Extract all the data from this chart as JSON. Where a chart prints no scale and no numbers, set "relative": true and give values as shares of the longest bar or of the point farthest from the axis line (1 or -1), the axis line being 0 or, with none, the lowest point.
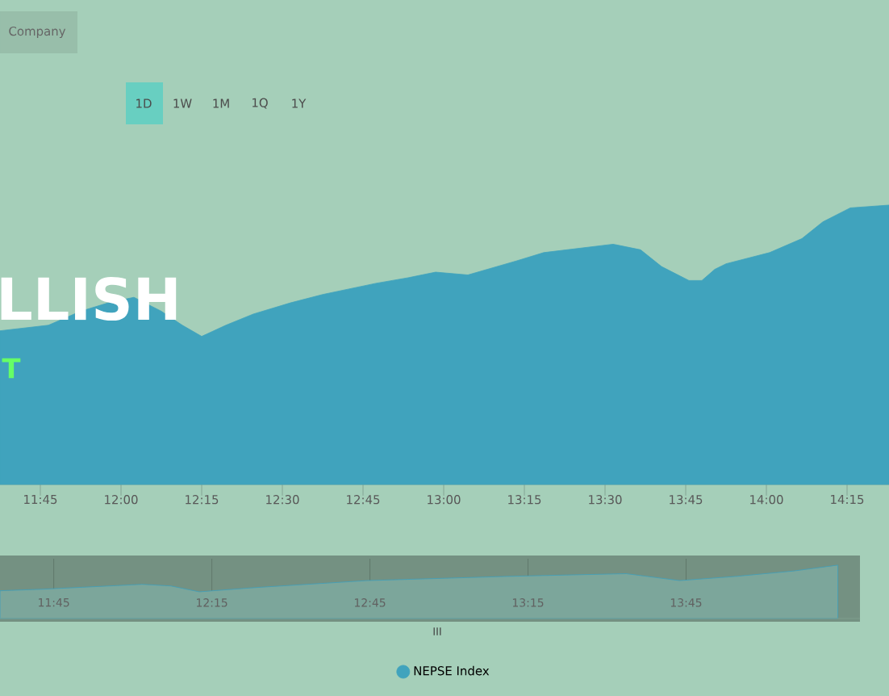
{
  "chart_data": [
    {
      "type": "area",
      "relative": true,
      "x": [
        11.625,
        11.7,
        11.775,
        11.875,
        11.96,
        12.04,
        12.125,
        12.19,
        12.25,
        12.325,
        12.41,
        12.525,
        12.625,
        12.79,
        12.89,
        12.975,
        13.075,
        13.225,
        13.31,
        13.525,
        13.61,
        13.675,
        13.76,
        13.8,
        13.84,
        13.875,
        14.01,
        14.11,
        14.175,
        14.26,
        14.38
      ],
      "series": [
        {
          "name": "NEPSE Index",
          "color": "#40a3bd",
          "values": [
            0.55,
            0.56,
            0.57,
            0.62,
            0.65,
            0.67,
            0.62,
            0.57,
            0.53,
            0.57,
            0.61,
            0.65,
            0.68,
            0.72,
            0.74,
            0.76,
            0.75,
            0.8,
            0.83,
            0.86,
            0.84,
            0.78,
            0.73,
            0.73,
            0.77,
            0.79,
            0.83,
            0.88,
            0.94,
            0.99,
            1
          ]
        }
      ],
      "xlim": [
        11.625,
        14.38
      ],
      "xticks": [
        {
          "value": 11.75,
          "label": "11:45"
        },
        {
          "value": 12,
          "label": "12:00"
        },
        {
          "value": 12.25,
          "label": "12:15"
        },
        {
          "value": 12.5,
          "label": "12:30"
        },
        {
          "value": 12.75,
          "label": "12:45"
        },
        {
          "value": 13,
          "label": "13:00"
        },
        {
          "value": 13.25,
          "label": "13:15"
        },
        {
          "value": 13.5,
          "label": "13:30"
        },
        {
          "value": 13.75,
          "label": "13:45"
        },
        {
          "value": 14,
          "label": "14:00"
        },
        {
          "value": 14.25,
          "label": "14:15"
        }
      ],
      "legend": "bottom",
      "annotations": [
        "Company",
        "1D",
        "1W",
        "1M",
        "1Q",
        "1Y",
        "LLISH",
        "T"
      ]
    },
    {
      "type": "area",
      "relative": true,
      "x": [
        11.58,
        11.72,
        12.03,
        12.12,
        12.21,
        12.39,
        12.74,
        13.19,
        13.56,
        13.73,
        13.91,
        14.09,
        14.23
      ],
      "series": [
        {
          "color": "#3d9fbd",
          "values": [
            0.52,
            0.55,
            0.64,
            0.61,
            0.5,
            0.58,
            0.71,
            0.79,
            0.84,
            0.71,
            0.79,
            0.89,
            1
          ]
        }
      ],
      "xlim": [
        11.58,
        14.3
      ],
      "xticks": [
        {
          "value": 11.75,
          "label": "11:45"
        },
        {
          "value": 12.25,
          "label": "12:15"
        },
        {
          "value": 12.75,
          "label": "12:45"
        },
        {
          "value": 13.25,
          "label": "13:15"
        },
        {
          "value": 13.75,
          "label": "13:45"
        }
      ],
      "grid": "x",
      "annotations": [
        "III"
      ]
    }
  ]
}
